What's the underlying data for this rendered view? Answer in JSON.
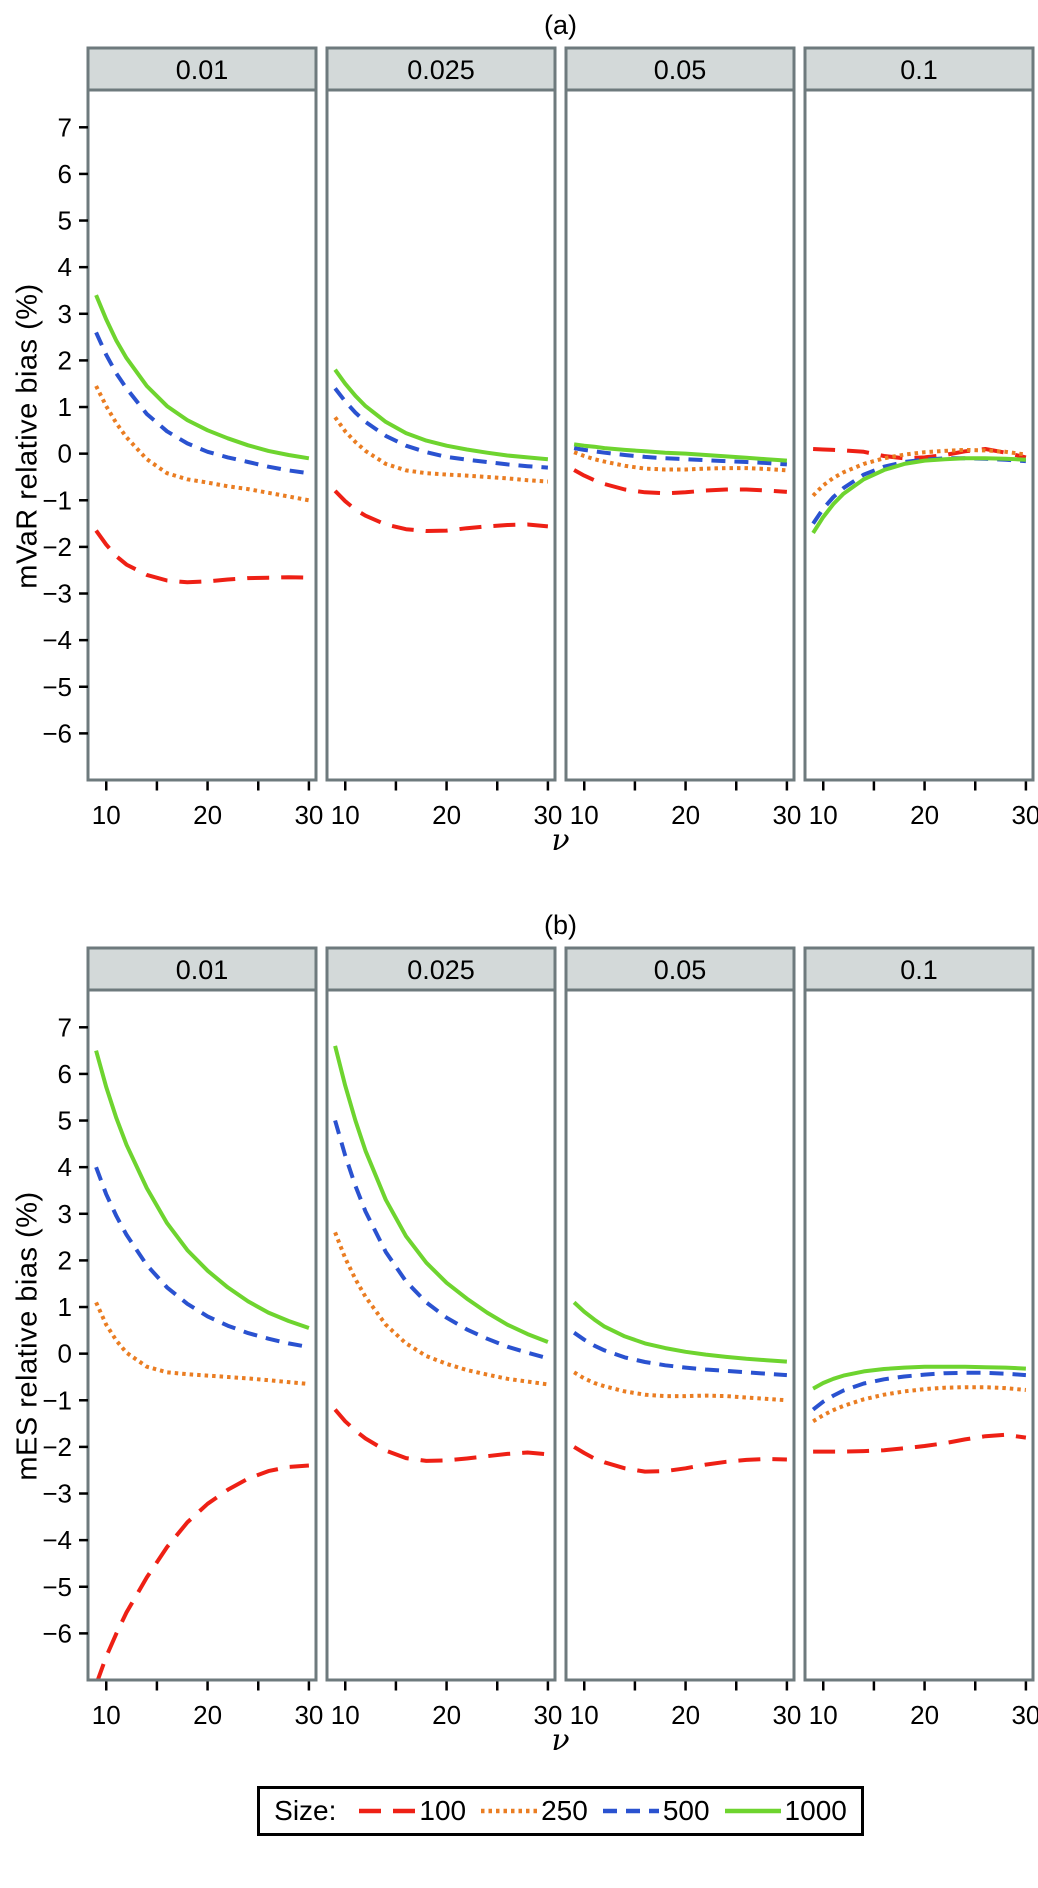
{
  "legend": {
    "title": "Size:",
    "position": "bottom",
    "entries": [
      {
        "label": "100",
        "color": "#ee2015",
        "dash": "longdash"
      },
      {
        "label": "250",
        "color": "#ea7d22",
        "dash": "dotted"
      },
      {
        "label": "500",
        "color": "#2a52d0",
        "dash": "dash"
      },
      {
        "label": "1000",
        "color": "#6ed42f",
        "dash": "solid"
      }
    ]
  },
  "style": {
    "panel_border": "#6e7a7d",
    "strip_fill": "#d3d9d9",
    "strip_border": "#6e7a7d",
    "axis_color": "#000000",
    "background": "#ffffff"
  },
  "chart_data": [
    {
      "type": "line",
      "title": "(a)",
      "ylabel": "mVaR relative bias (%)",
      "xlabel": "ν",
      "grid": false,
      "xlim": [
        8.2,
        30.7
      ],
      "ylim": [
        -7.0,
        7.8
      ],
      "x_ticks": [
        10,
        15,
        20,
        25,
        30
      ],
      "x_tick_labels": [
        {
          "v": 10,
          "label": "10"
        },
        {
          "v": 20,
          "label": "20"
        },
        {
          "v": 30,
          "label": "30"
        }
      ],
      "y_ticks": [
        7,
        6,
        5,
        4,
        3,
        2,
        1,
        0,
        -1,
        -2,
        -3,
        -4,
        -5,
        -6
      ],
      "y_tick_labels": [
        "7",
        "6",
        "5",
        "4",
        "3",
        "2",
        "1",
        "0",
        "−1",
        "−2",
        "−3",
        "−4",
        "−5",
        "−6"
      ],
      "x": [
        9,
        10,
        11,
        12,
        14,
        16,
        18,
        20,
        22,
        24,
        26,
        28,
        30
      ],
      "facets": [
        {
          "label": "0.01",
          "series": [
            {
              "name": "100",
              "values": [
                -1.65,
                -1.95,
                -2.2,
                -2.38,
                -2.6,
                -2.72,
                -2.76,
                -2.74,
                -2.7,
                -2.67,
                -2.66,
                -2.65,
                -2.66
              ]
            },
            {
              "name": "250",
              "values": [
                1.45,
                1.02,
                0.65,
                0.35,
                -0.12,
                -0.42,
                -0.55,
                -0.62,
                -0.7,
                -0.76,
                -0.84,
                -0.92,
                -1.0
              ]
            },
            {
              "name": "500",
              "values": [
                2.6,
                2.12,
                1.72,
                1.4,
                0.85,
                0.48,
                0.22,
                0.04,
                -0.08,
                -0.18,
                -0.28,
                -0.36,
                -0.42
              ]
            },
            {
              "name": "1000",
              "values": [
                3.4,
                2.88,
                2.42,
                2.05,
                1.45,
                1.02,
                0.72,
                0.5,
                0.33,
                0.18,
                0.06,
                -0.03,
                -0.1
              ]
            }
          ]
        },
        {
          "label": "0.025",
          "series": [
            {
              "name": "100",
              "values": [
                -0.8,
                -1.02,
                -1.2,
                -1.33,
                -1.52,
                -1.62,
                -1.66,
                -1.65,
                -1.6,
                -1.56,
                -1.53,
                -1.52,
                -1.56
              ]
            },
            {
              "name": "250",
              "values": [
                0.78,
                0.48,
                0.25,
                0.06,
                -0.22,
                -0.36,
                -0.42,
                -0.45,
                -0.47,
                -0.5,
                -0.53,
                -0.57,
                -0.6
              ]
            },
            {
              "name": "500",
              "values": [
                1.4,
                1.12,
                0.88,
                0.68,
                0.38,
                0.17,
                0.03,
                -0.07,
                -0.13,
                -0.18,
                -0.23,
                -0.27,
                -0.3
              ]
            },
            {
              "name": "1000",
              "values": [
                1.8,
                1.5,
                1.24,
                1.02,
                0.68,
                0.44,
                0.28,
                0.17,
                0.09,
                0.02,
                -0.04,
                -0.08,
                -0.12
              ]
            }
          ]
        },
        {
          "label": "0.05",
          "series": [
            {
              "name": "100",
              "values": [
                -0.35,
                -0.47,
                -0.57,
                -0.65,
                -0.77,
                -0.83,
                -0.85,
                -0.83,
                -0.79,
                -0.77,
                -0.77,
                -0.79,
                -0.82
              ]
            },
            {
              "name": "250",
              "values": [
                0.03,
                -0.05,
                -0.12,
                -0.17,
                -0.26,
                -0.32,
                -0.34,
                -0.34,
                -0.32,
                -0.31,
                -0.31,
                -0.33,
                -0.36
              ]
            },
            {
              "name": "500",
              "values": [
                0.12,
                0.08,
                0.05,
                0.02,
                -0.03,
                -0.07,
                -0.1,
                -0.12,
                -0.14,
                -0.16,
                -0.18,
                -0.2,
                -0.23
              ]
            },
            {
              "name": "1000",
              "values": [
                0.2,
                0.17,
                0.15,
                0.12,
                0.08,
                0.05,
                0.02,
                0.0,
                -0.03,
                -0.06,
                -0.09,
                -0.12,
                -0.15
              ]
            }
          ]
        },
        {
          "label": "0.1",
          "series": [
            {
              "name": "100",
              "values": [
                0.1,
                0.09,
                0.08,
                0.07,
                0.04,
                -0.05,
                -0.1,
                -0.08,
                -0.03,
                0.05,
                0.1,
                0.02,
                -0.08
              ]
            },
            {
              "name": "250",
              "values": [
                -0.9,
                -0.68,
                -0.52,
                -0.4,
                -0.22,
                -0.1,
                -0.02,
                0.03,
                0.06,
                0.08,
                0.07,
                0.04,
                -0.02
              ]
            },
            {
              "name": "500",
              "values": [
                -1.5,
                -1.18,
                -0.93,
                -0.74,
                -0.45,
                -0.28,
                -0.18,
                -0.13,
                -0.1,
                -0.1,
                -0.11,
                -0.13,
                -0.16
              ]
            },
            {
              "name": "1000",
              "values": [
                -1.7,
                -1.36,
                -1.08,
                -0.86,
                -0.55,
                -0.35,
                -0.22,
                -0.15,
                -0.12,
                -0.1,
                -0.1,
                -0.11,
                -0.13
              ]
            }
          ]
        }
      ]
    },
    {
      "type": "line",
      "title": "(b)",
      "ylabel": "mES relative bias (%)",
      "xlabel": "ν",
      "grid": false,
      "xlim": [
        8.2,
        30.7
      ],
      "ylim": [
        -7.0,
        7.8
      ],
      "x_ticks": [
        10,
        15,
        20,
        25,
        30
      ],
      "x_tick_labels": [
        {
          "v": 10,
          "label": "10"
        },
        {
          "v": 20,
          "label": "20"
        },
        {
          "v": 30,
          "label": "30"
        }
      ],
      "y_ticks": [
        7,
        6,
        5,
        4,
        3,
        2,
        1,
        0,
        -1,
        -2,
        -3,
        -4,
        -5,
        -6
      ],
      "y_tick_labels": [
        "7",
        "6",
        "5",
        "4",
        "3",
        "2",
        "1",
        "0",
        "−1",
        "−2",
        "−3",
        "−4",
        "−5",
        "−6"
      ],
      "x": [
        9,
        10,
        11,
        12,
        14,
        16,
        18,
        20,
        22,
        24,
        26,
        28,
        30
      ],
      "facets": [
        {
          "label": "0.01",
          "series": [
            {
              "name": "100",
              "values": [
                -7.1,
                -6.5,
                -6.0,
                -5.55,
                -4.8,
                -4.15,
                -3.62,
                -3.22,
                -2.92,
                -2.68,
                -2.52,
                -2.43,
                -2.4
              ]
            },
            {
              "name": "250",
              "values": [
                1.1,
                0.62,
                0.28,
                0.02,
                -0.28,
                -0.4,
                -0.44,
                -0.47,
                -0.5,
                -0.53,
                -0.57,
                -0.61,
                -0.65
              ]
            },
            {
              "name": "500",
              "values": [
                4.0,
                3.42,
                2.95,
                2.55,
                1.9,
                1.42,
                1.07,
                0.8,
                0.6,
                0.44,
                0.32,
                0.22,
                0.14
              ]
            },
            {
              "name": "1000",
              "values": [
                6.5,
                5.72,
                5.05,
                4.48,
                3.55,
                2.8,
                2.22,
                1.78,
                1.42,
                1.12,
                0.88,
                0.7,
                0.55
              ]
            }
          ]
        },
        {
          "label": "0.025",
          "series": [
            {
              "name": "100",
              "values": [
                -1.2,
                -1.45,
                -1.65,
                -1.82,
                -2.08,
                -2.24,
                -2.3,
                -2.29,
                -2.25,
                -2.2,
                -2.15,
                -2.12,
                -2.16
              ]
            },
            {
              "name": "250",
              "values": [
                2.6,
                2.05,
                1.6,
                1.22,
                0.62,
                0.22,
                -0.05,
                -0.22,
                -0.35,
                -0.45,
                -0.54,
                -0.6,
                -0.66
              ]
            },
            {
              "name": "500",
              "values": [
                5.0,
                4.25,
                3.6,
                3.05,
                2.18,
                1.55,
                1.1,
                0.77,
                0.52,
                0.32,
                0.15,
                0.02,
                -0.1
              ]
            },
            {
              "name": "1000",
              "values": [
                6.6,
                5.75,
                5.0,
                4.35,
                3.3,
                2.52,
                1.95,
                1.52,
                1.18,
                0.88,
                0.62,
                0.42,
                0.25
              ]
            }
          ]
        },
        {
          "label": "0.05",
          "series": [
            {
              "name": "100",
              "values": [
                -2.0,
                -2.13,
                -2.25,
                -2.33,
                -2.46,
                -2.53,
                -2.52,
                -2.46,
                -2.38,
                -2.32,
                -2.28,
                -2.26,
                -2.27
              ]
            },
            {
              "name": "250",
              "values": [
                -0.4,
                -0.53,
                -0.63,
                -0.7,
                -0.81,
                -0.88,
                -0.91,
                -0.91,
                -0.9,
                -0.91,
                -0.94,
                -0.97,
                -1.0
              ]
            },
            {
              "name": "500",
              "values": [
                0.45,
                0.3,
                0.17,
                0.07,
                -0.08,
                -0.18,
                -0.25,
                -0.3,
                -0.34,
                -0.37,
                -0.4,
                -0.43,
                -0.46
              ]
            },
            {
              "name": "1000",
              "values": [
                1.1,
                0.9,
                0.73,
                0.58,
                0.37,
                0.22,
                0.12,
                0.04,
                -0.02,
                -0.07,
                -0.11,
                -0.14,
                -0.17
              ]
            }
          ]
        },
        {
          "label": "0.1",
          "series": [
            {
              "name": "100",
              "values": [
                -2.1,
                -2.1,
                -2.1,
                -2.1,
                -2.09,
                -2.07,
                -2.03,
                -1.98,
                -1.92,
                -1.84,
                -1.77,
                -1.74,
                -1.8
              ]
            },
            {
              "name": "250",
              "values": [
                -1.45,
                -1.32,
                -1.21,
                -1.12,
                -0.98,
                -0.88,
                -0.81,
                -0.76,
                -0.73,
                -0.72,
                -0.72,
                -0.74,
                -0.78
              ]
            },
            {
              "name": "500",
              "values": [
                -1.2,
                -1.03,
                -0.9,
                -0.79,
                -0.64,
                -0.55,
                -0.49,
                -0.45,
                -0.42,
                -0.41,
                -0.41,
                -0.43,
                -0.46
              ]
            },
            {
              "name": "1000",
              "values": [
                -0.75,
                -0.63,
                -0.54,
                -0.47,
                -0.38,
                -0.33,
                -0.3,
                -0.28,
                -0.28,
                -0.28,
                -0.29,
                -0.3,
                -0.32
              ]
            }
          ]
        }
      ]
    }
  ]
}
